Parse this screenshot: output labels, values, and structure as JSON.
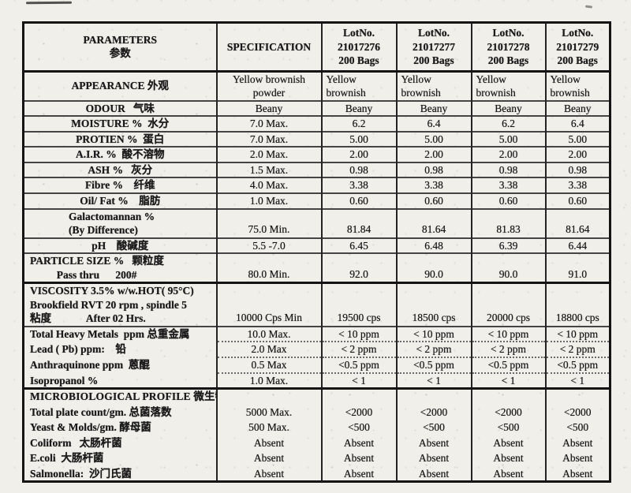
{
  "colors": {
    "paper": "#f1efe9",
    "ink": "#1a1a1a"
  },
  "table": {
    "columns": [
      {
        "lines": [
          "PARAMETERS",
          "参数"
        ]
      },
      {
        "lines": [
          "SPECIFICATION"
        ]
      },
      {
        "lines": [
          "LotNo.",
          "21017276",
          "200 Bags"
        ]
      },
      {
        "lines": [
          "LotNo.",
          "21017277",
          "200 Bags"
        ]
      },
      {
        "lines": [
          "LotNo.",
          "21017278",
          "200 Bags"
        ]
      },
      {
        "lines": [
          "LotNo.",
          "21017279",
          "200 Bags"
        ]
      }
    ],
    "rows": [
      {
        "name": "appearance",
        "param": [
          "APPEARANCE 外观"
        ],
        "spec": [
          "Yellow brownish",
          "powder"
        ],
        "values": [
          [
            "Yellow",
            "brownish"
          ],
          [
            "Yellow",
            "brownish"
          ],
          [
            "Yellow",
            "brownish"
          ],
          [
            "Yellow",
            "brownish"
          ]
        ]
      },
      {
        "name": "odour",
        "param": [
          "ODOUR   气味"
        ],
        "spec": [
          "Beany"
        ],
        "values": [
          "Beany",
          "Beany",
          "Beany",
          "Beany"
        ]
      },
      {
        "name": "moisture",
        "param": [
          "MOISTURE %  水分"
        ],
        "spec": [
          "7.0 Max."
        ],
        "values": [
          "6.2",
          "6.4",
          "6.2",
          "6.4"
        ]
      },
      {
        "name": "protien",
        "param": [
          "PROTIEN %  蛋白"
        ],
        "spec": [
          "7.0 Max."
        ],
        "values": [
          "5.00",
          "5.00",
          "5.00",
          "5.00"
        ]
      },
      {
        "name": "air",
        "param": [
          "A.I.R. %  酸不溶物"
        ],
        "spec": [
          "2.0 Max."
        ],
        "values": [
          "2.00",
          "2.00",
          "2.00",
          "2.00"
        ]
      },
      {
        "name": "ash",
        "param": [
          "ASH %   灰分"
        ],
        "spec": [
          "1.5 Max."
        ],
        "values": [
          "0.98",
          "0.98",
          "0.98",
          "0.98"
        ]
      },
      {
        "name": "fibre",
        "param": [
          "Fibre %    纤维"
        ],
        "spec": [
          "4.0 Max."
        ],
        "values": [
          "3.38",
          "3.38",
          "3.38",
          "3.38"
        ]
      },
      {
        "name": "oil-fat",
        "param": [
          "Oil/ Fat %    脂肪"
        ],
        "spec": [
          "1.0 Max."
        ],
        "values": [
          "0.60",
          "0.60",
          "0.60",
          "0.60"
        ]
      },
      {
        "name": "galactomannan",
        "param": [
          "Galactomannan %",
          "(By Difference)"
        ],
        "spec": [
          "75.0 Min."
        ],
        "values": [
          "81.84",
          "81.64",
          "81.83",
          "81.64"
        ]
      },
      {
        "name": "ph",
        "param": [
          "pH    酸碱度"
        ],
        "spec": [
          "5.5 -7.0"
        ],
        "values": [
          "6.45",
          "6.48",
          "6.39",
          "6.44"
        ]
      },
      {
        "name": "particle-size",
        "param": [
          "PARTICLE SIZE %   颗粒度",
          "          Pass thru      200#"
        ],
        "spec": [
          "80.0 Min."
        ],
        "values": [
          "92.0",
          "90.0",
          "90.0",
          "91.0"
        ]
      },
      {
        "name": "viscosity",
        "param": [
          "VISCOSITY 3.5% w/w.HOT( 95°C)",
          "Brookfield RVT 20 rpm , spindle 5",
          "粘度             After 02 Hrs."
        ],
        "spec": [
          "10000 Cps Min"
        ],
        "values": [
          "19500 cps",
          "18500 cps",
          "20000 cps",
          "18800 cps"
        ]
      },
      {
        "name": "heavy-metals",
        "param": [
          "Total Heavy Metals  ppm 总重金属"
        ],
        "spec": [
          "10.0 Max."
        ],
        "values": [
          "< 10 ppm",
          "< 10 ppm",
          "< 10 ppm",
          "< 10 ppm"
        ]
      },
      {
        "name": "lead",
        "param": [
          "Lead ( Pb) ppm:    铅"
        ],
        "spec": [
          "2.0 Max"
        ],
        "values": [
          "< 2 ppm",
          "< 2 ppm",
          "< 2 ppm",
          "< 2 ppm"
        ]
      },
      {
        "name": "anthraquinone",
        "param": [
          "Anthraquinone ppm  蒽醌"
        ],
        "spec": [
          "0.5 Max"
        ],
        "values": [
          "<0.5 ppm",
          "<0.5 ppm",
          "<0.5 ppm",
          "<0.5 ppm"
        ]
      },
      {
        "name": "isopropanol",
        "param": [
          "Isopropanol %"
        ],
        "spec": [
          "1.0 Max."
        ],
        "values": [
          "< 1",
          "< 1",
          "< 1",
          "< 1"
        ]
      },
      {
        "name": "micro-profile",
        "param": [
          "MICROBIOLOGICAL PROFILE 微生物"
        ],
        "spec": [
          ""
        ],
        "values": [
          "",
          "",
          "",
          ""
        ]
      },
      {
        "name": "total-plate-count",
        "param": [
          "Total plate count/gm. 总菌落数"
        ],
        "spec": [
          "5000 Max."
        ],
        "values": [
          "<2000",
          "<2000",
          "<2000",
          "<2000"
        ]
      },
      {
        "name": "yeast-molds",
        "param": [
          "Yeast & Molds/gm. 酵母菌"
        ],
        "spec": [
          "500 Max."
        ],
        "values": [
          "<500",
          "<500",
          "<500",
          "<500"
        ]
      },
      {
        "name": "coliform",
        "param": [
          "Coliform   太肠杆菌"
        ],
        "spec": [
          "Absent"
        ],
        "values": [
          "Absent",
          "Absent",
          "Absent",
          "Absent"
        ]
      },
      {
        "name": "ecoli",
        "param": [
          "E.coli  大肠杆菌"
        ],
        "spec": [
          "Absent"
        ],
        "values": [
          "Absent",
          "Absent",
          "Absent",
          "Absent"
        ]
      },
      {
        "name": "salmonella",
        "param": [
          "Salmonella:  沙门氏菌"
        ],
        "spec": [
          "Absent"
        ],
        "values": [
          "Absent",
          "Absent",
          "Absent",
          "Absent"
        ]
      }
    ]
  }
}
